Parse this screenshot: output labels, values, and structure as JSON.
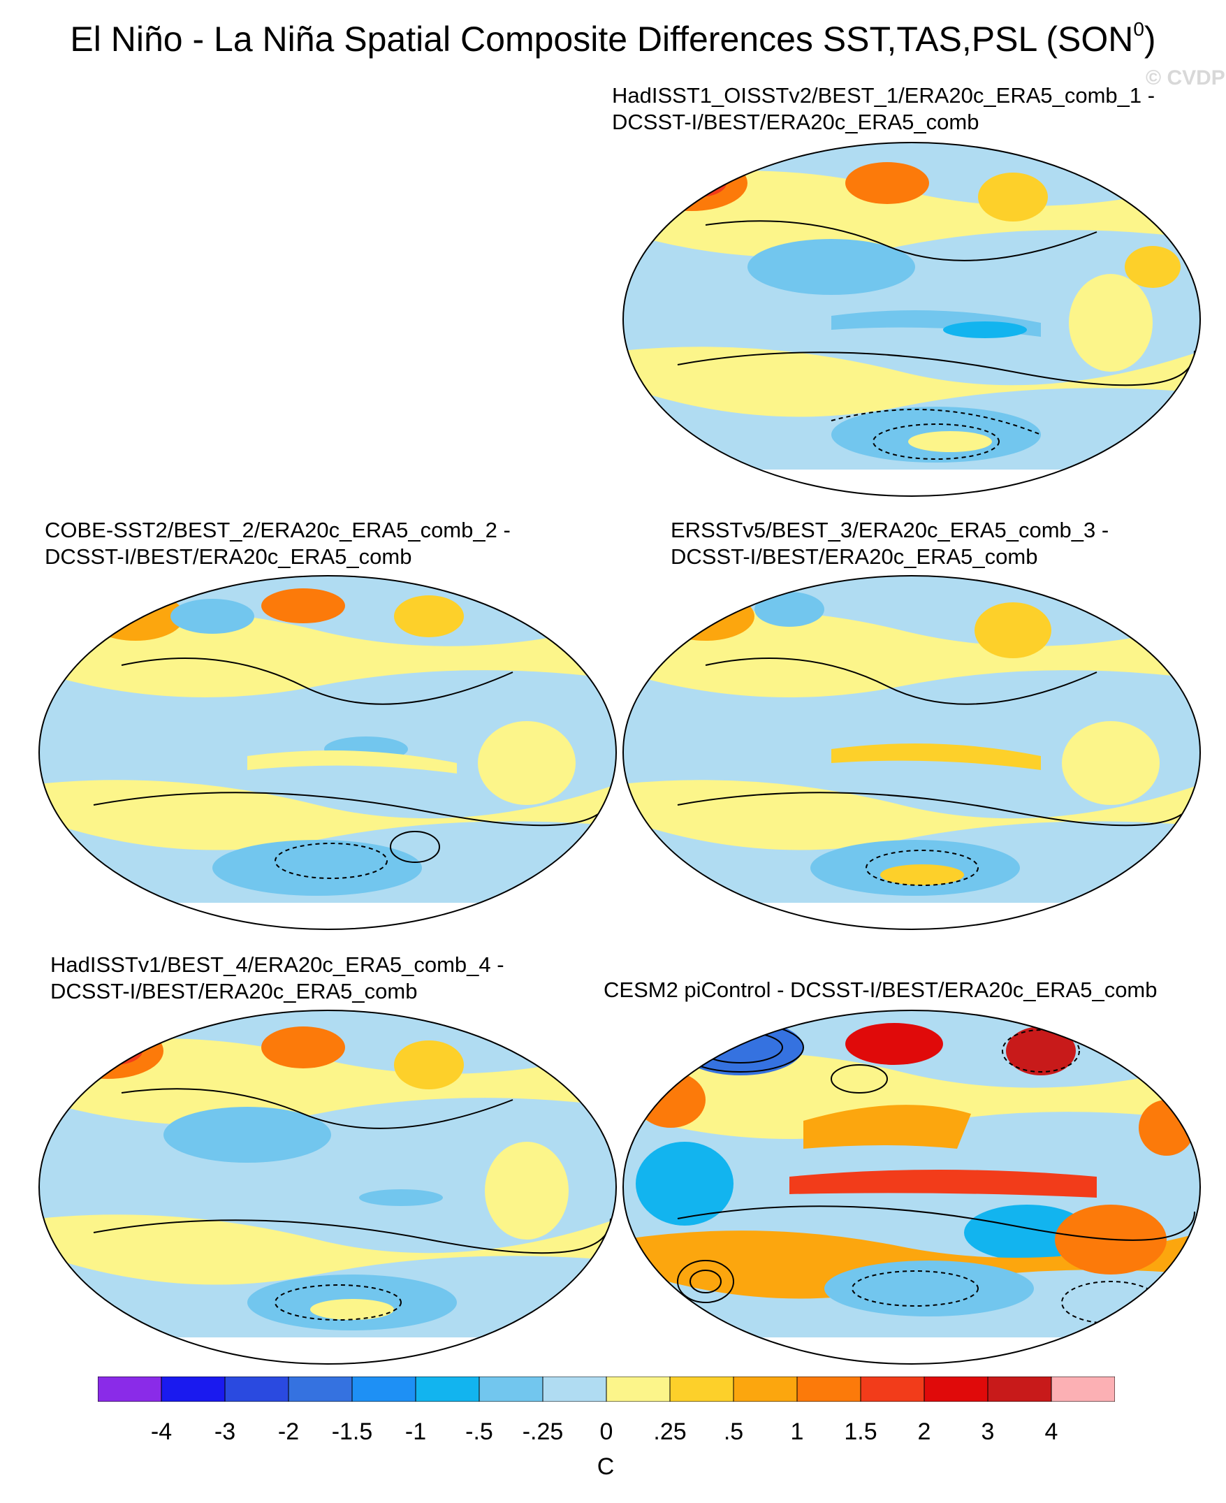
{
  "title": "El Niño - La Niña Spatial Composite Differences SST,TAS,PSL (SON",
  "title_superscript": "0",
  "title_close": ")",
  "watermark": "© CVDP",
  "panels": [
    {
      "line1": "HadISST1_OISSTv2/BEST_1/ERA20c_ERA5_comb_1 -",
      "line2": "DCSST-I/BEST/ERA20c_ERA5_comb"
    },
    {
      "line1": "COBE-SST2/BEST_2/ERA20c_ERA5_comb_2 -",
      "line2": "DCSST-I/BEST/ERA20c_ERA5_comb"
    },
    {
      "line1": "ERSSTv5/BEST_3/ERA20c_ERA5_comb_3 -",
      "line2": "DCSST-I/BEST/ERA20c_ERA5_comb"
    },
    {
      "line1": "HadISSTv1/BEST_4/ERA20c_ERA5_comb_4 -",
      "line2": "DCSST-I/BEST/ERA20c_ERA5_comb"
    },
    {
      "line1": "CESM2 piControl - DCSST-I/BEST/ERA20c_ERA5_comb",
      "line2": ""
    }
  ],
  "colorbar": {
    "colors": [
      "#8a2be8",
      "#1a1aef",
      "#2a4ae0",
      "#3572e0",
      "#1e90f5",
      "#12b4ef",
      "#72c6ee",
      "#b0dcf2",
      "#fcf58a",
      "#fdd02a",
      "#fca60e",
      "#fc7a0a",
      "#f23c1a",
      "#e00a0a",
      "#c81a1a",
      "#fcb0b4"
    ],
    "ticks": [
      "-4",
      "-3",
      "-2",
      "-1.5",
      "-1",
      "-.5",
      "-.25",
      "0",
      ".25",
      ".5",
      "1",
      "1.5",
      "2",
      "3",
      "4"
    ],
    "unit": "C"
  }
}
